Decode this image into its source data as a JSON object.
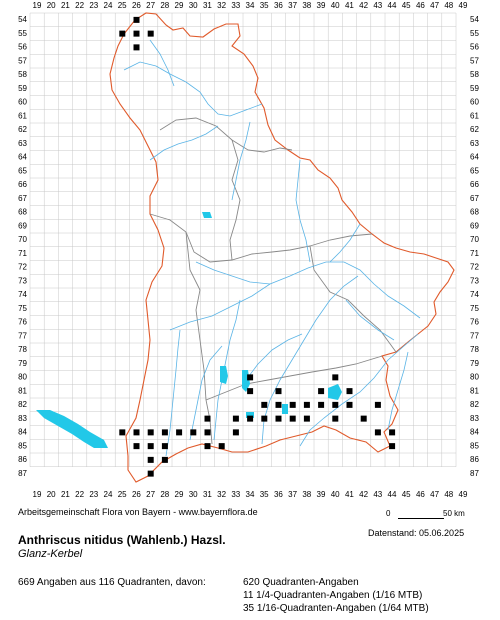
{
  "grid": {
    "col_labels": [
      19,
      20,
      21,
      22,
      23,
      24,
      25,
      26,
      27,
      28,
      29,
      30,
      31,
      32,
      33,
      34,
      35,
      36,
      37,
      38,
      39,
      40,
      41,
      42,
      43,
      44,
      45,
      46,
      47,
      48,
      49
    ],
    "row_labels": [
      54,
      55,
      56,
      57,
      58,
      59,
      60,
      61,
      62,
      63,
      64,
      65,
      66,
      67,
      68,
      69,
      70,
      71,
      72,
      73,
      74,
      75,
      76,
      77,
      78,
      79,
      80,
      81,
      82,
      83,
      84,
      85,
      86,
      87
    ]
  },
  "colors": {
    "border": "#e05a2b",
    "internal_border": "#888888",
    "river": "#5ab4e6",
    "lake": "#22c8e8",
    "grid": "#c8c8c8",
    "marker": "#000000"
  },
  "occurrences": [
    [
      26,
      54
    ],
    [
      26,
      55
    ],
    [
      25,
      55
    ],
    [
      27,
      55
    ],
    [
      26,
      56
    ],
    [
      34,
      80
    ],
    [
      40,
      80
    ],
    [
      34,
      81
    ],
    [
      36,
      81
    ],
    [
      39,
      81
    ],
    [
      41,
      81
    ],
    [
      35,
      82
    ],
    [
      36,
      82
    ],
    [
      37,
      82
    ],
    [
      38,
      82
    ],
    [
      39,
      82
    ],
    [
      40,
      82
    ],
    [
      41,
      82
    ],
    [
      43,
      82
    ],
    [
      31,
      83
    ],
    [
      33,
      83
    ],
    [
      34,
      83
    ],
    [
      35,
      83
    ],
    [
      36,
      83
    ],
    [
      37,
      83
    ],
    [
      38,
      83
    ],
    [
      40,
      83
    ],
    [
      42,
      83
    ],
    [
      25,
      84
    ],
    [
      26,
      84
    ],
    [
      27,
      84
    ],
    [
      28,
      84
    ],
    [
      29,
      84
    ],
    [
      30,
      84
    ],
    [
      31,
      84
    ],
    [
      33,
      84
    ],
    [
      43,
      84
    ],
    [
      44,
      84
    ],
    [
      26,
      85
    ],
    [
      27,
      85
    ],
    [
      28,
      85
    ],
    [
      31,
      85
    ],
    [
      32,
      85
    ],
    [
      44,
      85
    ],
    [
      27,
      86
    ],
    [
      28,
      86
    ],
    [
      27,
      87
    ]
  ],
  "texts": {
    "credit": "Arbeitsgemeinschaft Flora von Bayern - www.bayernflora.de",
    "scale_zero": "0",
    "scale_length": "50 km",
    "date": "Datenstand: 05.06.2025",
    "species": "Anthriscus nitidus (Wahlenb.) Hazsl.",
    "common_name": "Glanz-Kerbel",
    "summary": "669 Angaben aus 116 Quadranten, davon:",
    "stat_quadrant": "620 Quadranten-Angaben",
    "stat_quarter": "11 1/4-Quadranten-Angaben (1/16 MTB)",
    "stat_sixteenth": "35 1/16-Quadranten-Angaben (1/64 MTB)"
  }
}
